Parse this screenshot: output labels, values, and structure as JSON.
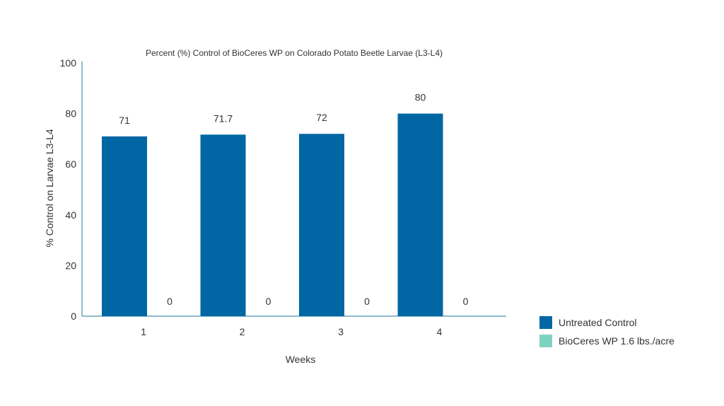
{
  "chart_data": {
    "type": "bar",
    "title": "Percent (%) Control of BioCeres WP on Colorado Potato Beetle Larvae (L3-L4)",
    "xlabel": "Weeks",
    "ylabel": "% Control on Larvae L3-L4",
    "categories": [
      "1",
      "2",
      "3",
      "4"
    ],
    "ylim": [
      0,
      100
    ],
    "yticks": [
      0,
      20,
      40,
      60,
      80,
      100
    ],
    "grid": false,
    "legend_position": "bottom-right",
    "series": [
      {
        "name": "Untreated Control",
        "values": [
          71,
          71.7,
          72,
          80
        ],
        "labels": [
          "71",
          "71.7",
          "72",
          "80"
        ],
        "color": "#0066a4"
      },
      {
        "name": "BioCeres WP 1.6 lbs./acre",
        "values": [
          0,
          0,
          0,
          0
        ],
        "labels": [
          "0",
          "0",
          "0",
          "0"
        ],
        "color": "#7dd3c0"
      }
    ],
    "axis_color": "#1a7a9a"
  }
}
